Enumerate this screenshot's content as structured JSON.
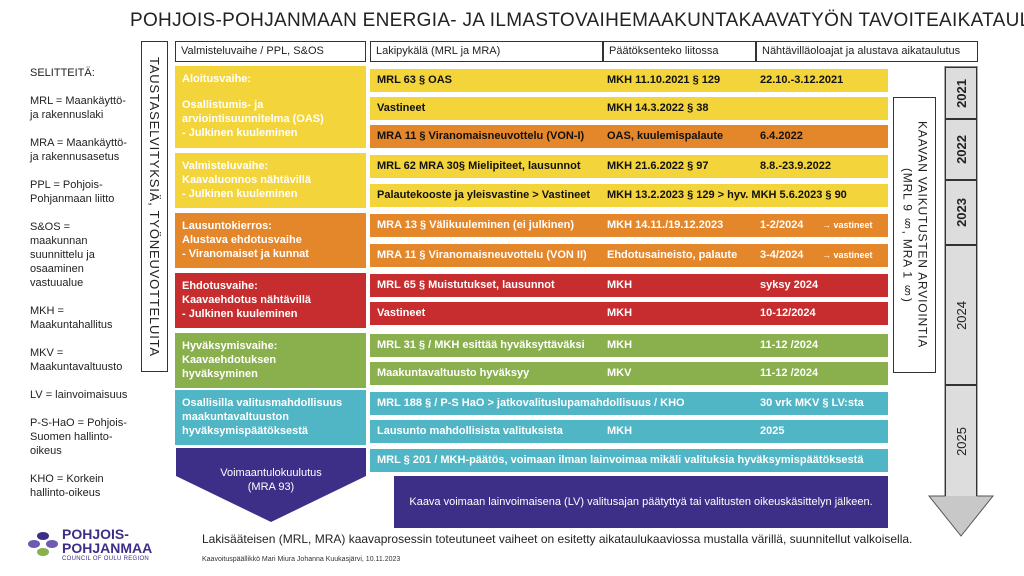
{
  "title": "POHJOIS-POHJANMAAN  ENERGIA- JA ILMASTOVAIHEMAAKUNTAKAAVATYÖN TAVOITEAIKATAULU",
  "legend": {
    "header": "SELITTEITÄ:",
    "items": [
      "MRL = Maankäyttö- ja rakennuslaki",
      "MRA = Maankäyttö- ja rakennusasetus",
      "PPL = Pohjois-Pohjanmaan liitto",
      "S&OS = maakunnan suunnittelu ja osaaminen vastuualue",
      "MKH = Maakuntahallitus",
      "MKV = Maakuntavaltuusto",
      "LV = lainvoimaisuus",
      "P-S-HaO = Pohjois-Suomen hallinto-oikeus",
      "KHO = Korkein hallinto-oikeus"
    ]
  },
  "left_vertical": "TAUSTASELVITYKSIÄ, TYÖNEUVOTTELUITA",
  "right_vertical_line1": "KAAVAN VAIKUTUSTEN ARVIOINTIA",
  "right_vertical_line2": "(MRL 9 §, MRA 1 §)",
  "columns": [
    "Valmisteluvaihe / PPL, S&OS",
    "Lakipykälä (MRL ja MRA)",
    "Päätöksenteko liitossa",
    "Nähtävilläoloajat ja alustava aikataulutus"
  ],
  "phases": [
    {
      "line1": "Aloitusvaihe:",
      "line2": "",
      "line3": "Osallistumis- ja",
      "line4": "arviointisuunnitelma (OAS)",
      "line5": "- Julkinen kuuleminen",
      "color": "#f3d43b"
    },
    {
      "line1": "Valmisteluvaihe:",
      "line2": "Kaavaluonnos nähtävillä",
      "line3": "- Julkinen kuuleminen",
      "color": "#f3d43b"
    },
    {
      "line1": "Lausuntokierros:",
      "line2": "Alustava ehdotusvaihe",
      "line3": "- Viranomaiset ja kunnat",
      "color": "#e4862a"
    },
    {
      "line1": "Ehdotusvaihe:",
      "line2": "Kaavaehdotus nähtävillä",
      "line3": "- Julkinen kuuleminen",
      "color": "#c72c2e"
    },
    {
      "line1": "Hyväksymisvaihe:",
      "line2": "Kaavaehdotuksen",
      "line3": "hyväksyminen",
      "color": "#89b04c"
    },
    {
      "line1": "Osallisilla valitusmahdollisuus",
      "line2": "maakuntavaltuuston",
      "line3": "hyväksymispäätöksestä",
      "color": "#50b5c5"
    }
  ],
  "rows": [
    {
      "law": "MRL 63 § OAS",
      "decision": "MKH 11.10.2021 § 129",
      "schedule": "22.10.-3.12.2021",
      "color": "#f3d43b"
    },
    {
      "law": "Vastineet",
      "decision": "MKH 14.3.2022 § 38",
      "schedule": "",
      "color": "#f3d43b"
    },
    {
      "law": "MRA 11 § Viranomaisneuvottelu (VON-I)",
      "decision": "OAS, kuulemispalaute",
      "schedule": "6.4.2022",
      "color": "#e4862a"
    },
    {
      "law": "MRL 62 MRA 30§ Mielipiteet, lausunnot",
      "decision": "MKH 21.6.2022 § 97",
      "schedule": "8.8.-23.9.2022",
      "color": "#f3d43b"
    },
    {
      "law": "Palautekooste ja yleisvastine > Vastineet",
      "decision": "MKH 13.2.2023 § 129 >  hyv. MKH 5.6.2023 § 90",
      "schedule": "",
      "color": "#f3d43b"
    },
    {
      "law": "MRA 13 § Välikuuleminen (ei julkinen)",
      "decision": "MKH 14.11./19.12.2023",
      "schedule": "1-2/2024",
      "tag": "vastineet",
      "color": "#e4862a"
    },
    {
      "law": "MRA 11 § Viranomaisneuvottelu (VON II)",
      "decision": "Ehdotusaineisto, palaute",
      "schedule": "3-4/2024",
      "tag": "vastineet",
      "color": "#e4862a"
    },
    {
      "law": "MRL 65 § Muistutukset, lausunnot",
      "decision": "MKH",
      "schedule": "syksy 2024",
      "color": "#c72c2e"
    },
    {
      "law": "Vastineet",
      "decision": "MKH",
      "schedule": "10-12/2024",
      "color": "#c72c2e"
    },
    {
      "law": "MRL 31 § / MKH esittää hyväksyttäväksi",
      "decision": "MKH",
      "schedule": "11-12 /2024",
      "color": "#89b04c"
    },
    {
      "law": "Maakuntavaltuusto hyväksyy",
      "decision": "MKV",
      "schedule": "11-12 /2024",
      "color": "#89b04c"
    },
    {
      "law": "MRL 188 § / P-S HaO > jatkovalituslupamahdollisuus / KHO",
      "decision": "",
      "schedule": "30 vrk MKV § LV:sta",
      "color": "#50b5c5"
    },
    {
      "law": "Lausunto mahdollisista valituksista",
      "decision": "MKH",
      "schedule": "2025",
      "color": "#50b5c5"
    },
    {
      "law": "MRL § 201 / MKH-päätös, voimaan ilman lainvoimaa mikäli valituksia hyväksymispäätöksestä",
      "decision": "",
      "schedule": "",
      "color": "#50b5c5"
    }
  ],
  "effect_notice_line1": "Voimaantulokuulutus",
  "effect_notice_line2": "(MRA 93)",
  "final_box": "Kaava voimaan lainvoimaisena (LV) valitusajan päätyttyä tai valitusten oikeuskäsittelyn jälkeen.",
  "years": [
    "2021",
    "2022",
    "2023",
    "2024",
    "2025"
  ],
  "footer": "Lakisääteisen (MRL, MRA) kaavaprosessin toteutuneet vaiheet on esitetty aikataulukaaviossa mustalla värillä, suunnitellut valkoisella.",
  "credit": "Kaavoituspäällikkö Mari Miura Johanna Kuukasjärvi, 10.11.2023",
  "logo": {
    "line1": "POHJOIS-",
    "line2": "POHJANMAA",
    "line3": "COUNCIL OF OULU REGION"
  },
  "colors": {
    "yellow": "#f3d43b",
    "orange": "#e4862a",
    "red": "#c72c2e",
    "green": "#89b04c",
    "teal": "#50b5c5",
    "purple": "#3d2e87",
    "arrow_gray": "#c8c8c8"
  }
}
